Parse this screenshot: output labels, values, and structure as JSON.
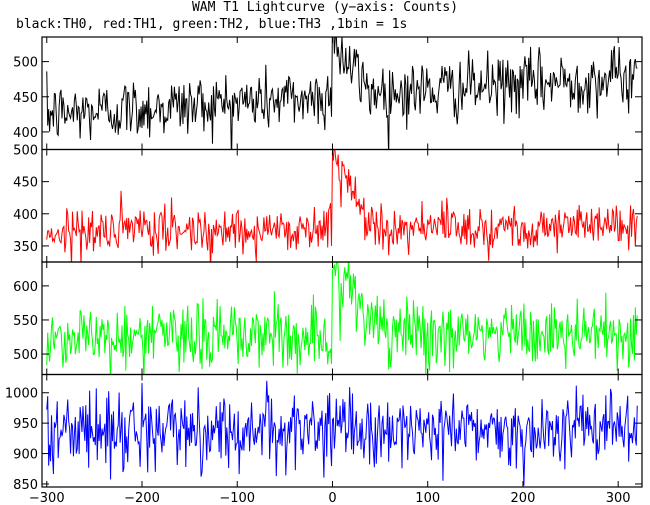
{
  "title": "WAM T1 Lightcurve (y−axis: Counts)",
  "subtitle": "black:TH0, red:TH1, green:TH2, blue:TH3 ,1bin = 1s",
  "chart_data": {
    "type": "line",
    "x_range": [
      -305,
      325
    ],
    "x_ticks": [
      -300,
      -200,
      -100,
      0,
      100,
      200,
      300
    ],
    "x_tick_labels": [
      "−300",
      "−200",
      "−100",
      "0",
      "100",
      "200",
      "300"
    ],
    "panels": [
      {
        "name": "TH0",
        "color": "#000000",
        "ylim": [
          375,
          535
        ],
        "y_ticks": [
          400,
          450,
          500
        ],
        "y_tick_labels": [
          "400",
          "450",
          "500"
        ],
        "model": {
          "start": -300,
          "end": 320,
          "base_start": 425,
          "base_end": 478,
          "noise": 22,
          "events": [
            {
              "peak_start": 0,
              "peak_end": 4,
              "amp_start": 95,
              "amp_end": 95,
              "decay": 6
            },
            {
              "peak_start": 10,
              "peak_end": 25,
              "amp_start": 30,
              "amp_end": 30,
              "decay": 10
            }
          ]
        }
      },
      {
        "name": "TH1",
        "color": "#ff0000",
        "ylim": [
          325,
          500
        ],
        "y_ticks": [
          350,
          400,
          450,
          500
        ],
        "y_tick_labels": [
          "350",
          "400",
          "450",
          "500"
        ],
        "model": {
          "start": -300,
          "end": 320,
          "base_start": 372,
          "base_end": 382,
          "noise": 18,
          "events": [
            {
              "peak_start": 0,
              "peak_end": 4,
              "amp_start": 125,
              "amp_end": 125,
              "decay": 6
            },
            {
              "peak_start": 10,
              "peak_end": 22,
              "amp_start": 55,
              "amp_end": 55,
              "decay": 12
            }
          ]
        }
      },
      {
        "name": "TH2",
        "color": "#00ff00",
        "ylim": [
          470,
          635
        ],
        "y_ticks": [
          500,
          550,
          600
        ],
        "y_tick_labels": [
          "500",
          "550",
          "600"
        ],
        "model": {
          "start": -300,
          "end": 320,
          "base_start": 525,
          "base_end": 530,
          "noise": 25,
          "events": [
            {
              "peak_start": 0,
              "peak_end": 4,
              "amp_start": 105,
              "amp_end": 105,
              "decay": 5
            },
            {
              "peak_start": 12,
              "peak_end": 22,
              "amp_start": 70,
              "amp_end": 70,
              "decay": 10
            }
          ]
        }
      },
      {
        "name": "TH3",
        "color": "#0000ff",
        "ylim": [
          845,
          1030
        ],
        "y_ticks": [
          850,
          900,
          950,
          1000
        ],
        "y_tick_labels": [
          "850",
          "900",
          "950",
          "1000"
        ],
        "model": {
          "start": -300,
          "end": 320,
          "base_start": 938,
          "base_end": 940,
          "noise": 30,
          "events": []
        }
      }
    ]
  }
}
